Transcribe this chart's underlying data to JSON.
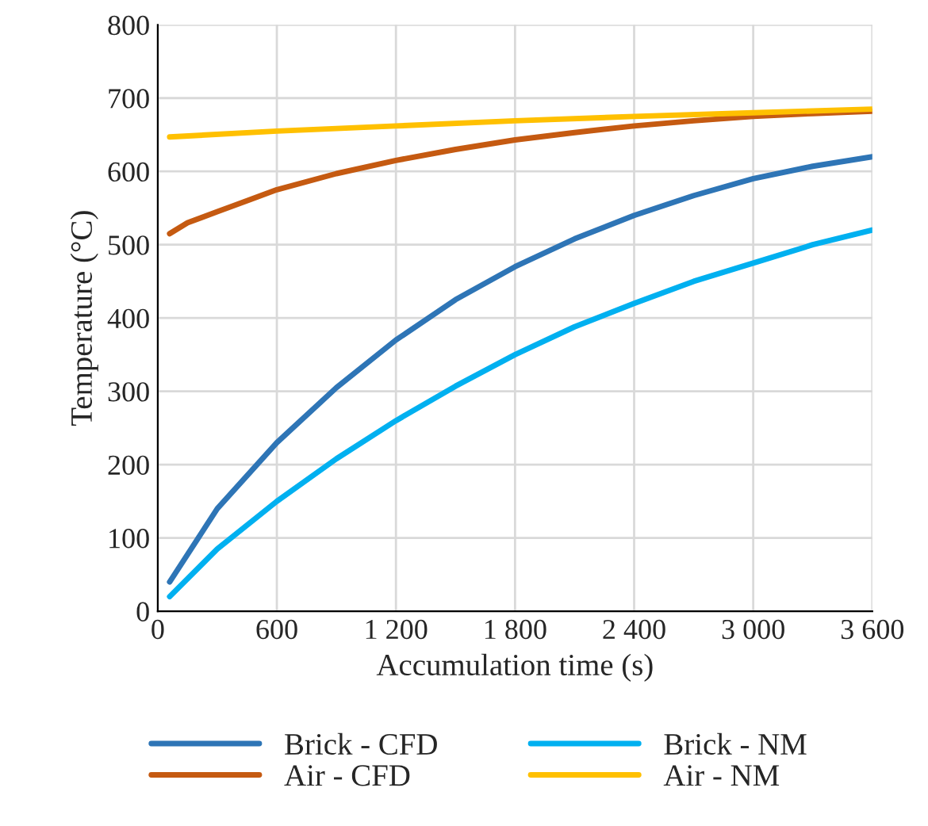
{
  "chart_data": {
    "type": "line",
    "xlabel": "Accumulation time (s)",
    "ylabel": "Temperature (°C)",
    "xlim": [
      0,
      3600
    ],
    "xticks": [
      0,
      600,
      {
        "value": 1200,
        "label": "1 200"
      },
      {
        "value": 1800,
        "label": "1 800"
      },
      {
        "value": 2400,
        "label": "2 400"
      },
      {
        "value": 3000,
        "label": "3 000"
      },
      {
        "value": 3600,
        "label": "3 600"
      }
    ],
    "ylim": [
      0,
      800
    ],
    "yticks": [
      0,
      100,
      200,
      300,
      400,
      500,
      600,
      700,
      800
    ],
    "grid": true,
    "legend": "bottom",
    "marker": "none",
    "line_style": "solid",
    "series": [
      {
        "name": "Brick - CFD",
        "color": "#2e75b6",
        "x": [
          60,
          300,
          600,
          900,
          1200,
          1500,
          1800,
          2100,
          2400,
          2700,
          3000,
          3300,
          3600
        ],
        "values": [
          40,
          140,
          230,
          305,
          370,
          425,
          470,
          508,
          540,
          567,
          590,
          607,
          620
        ]
      },
      {
        "name": "Air - CFD",
        "color": "#c55a11",
        "x": [
          60,
          150,
          300,
          600,
          900,
          1200,
          1500,
          1800,
          2100,
          2400,
          2700,
          3000,
          3300,
          3600
        ],
        "values": [
          515,
          530,
          545,
          575,
          597,
          615,
          630,
          643,
          653,
          662,
          669,
          675,
          679,
          682
        ]
      },
      {
        "name": "Brick - NM",
        "color": "#00b0f0",
        "x": [
          60,
          300,
          600,
          900,
          1200,
          1500,
          1800,
          2100,
          2400,
          2700,
          3000,
          3300,
          3600
        ],
        "values": [
          20,
          85,
          150,
          208,
          260,
          307,
          350,
          388,
          420,
          450,
          475,
          500,
          520
        ]
      },
      {
        "name": "Air - NM",
        "color": "#ffc000",
        "x": [
          60,
          600,
          1200,
          1800,
          2400,
          3000,
          3600
        ],
        "values": [
          647,
          655,
          662,
          669,
          675,
          680,
          685
        ]
      }
    ]
  }
}
